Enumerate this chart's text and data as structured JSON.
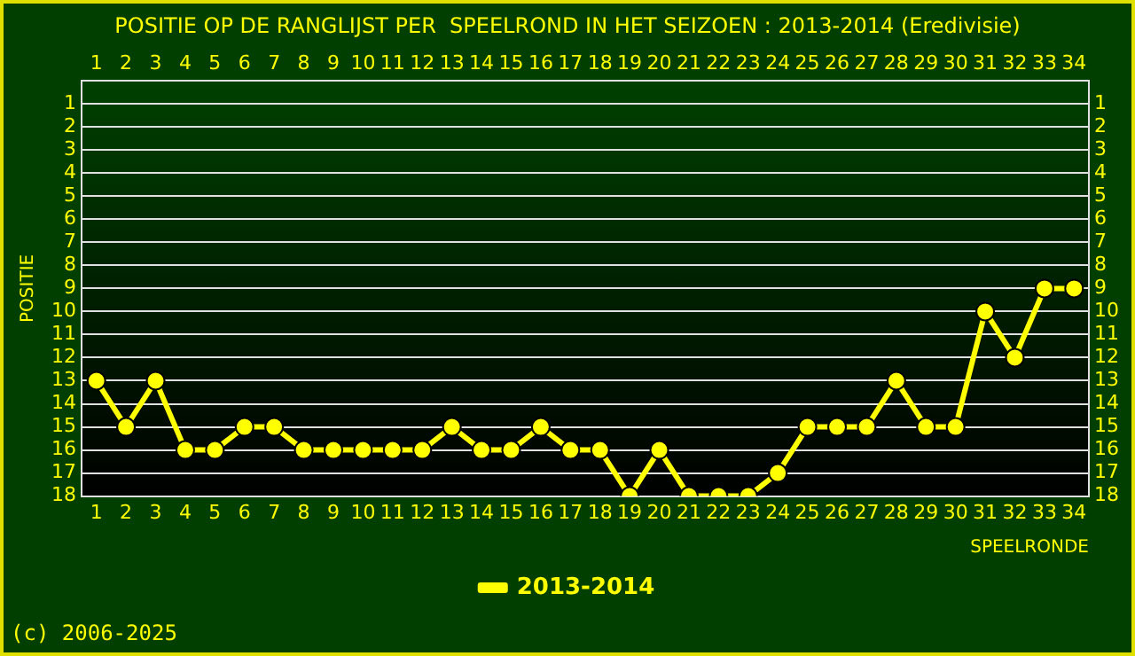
{
  "chart_data": {
    "type": "line",
    "title": "POSITIE OP DE RANGLIJST PER  SPEELROND IN HET SEIZOEN : 2013-2014 (Eredivisie)",
    "xlabel": "SPEELRONDE",
    "ylabel": "POSITIE",
    "x": [
      1,
      2,
      3,
      4,
      5,
      6,
      7,
      8,
      9,
      10,
      11,
      12,
      13,
      14,
      15,
      16,
      17,
      18,
      19,
      20,
      21,
      22,
      23,
      24,
      25,
      26,
      27,
      28,
      29,
      30,
      31,
      32,
      33,
      34
    ],
    "series": [
      {
        "name": "2013-2014",
        "color": "#ffff00",
        "values": [
          13,
          15,
          13,
          16,
          16,
          15,
          15,
          16,
          16,
          16,
          16,
          16,
          15,
          16,
          16,
          15,
          16,
          16,
          18,
          16,
          18,
          18,
          18,
          17,
          15,
          15,
          15,
          13,
          15,
          15,
          10,
          12,
          9,
          9
        ]
      }
    ],
    "xlim": [
      0.5,
      34.5
    ],
    "xticks": [
      1,
      2,
      3,
      4,
      5,
      6,
      7,
      8,
      9,
      10,
      11,
      12,
      13,
      14,
      15,
      16,
      17,
      18,
      19,
      20,
      21,
      22,
      23,
      24,
      25,
      26,
      27,
      28,
      29,
      30,
      31,
      32,
      33,
      34
    ],
    "x2lim": [
      0.5,
      34.5
    ],
    "x2ticks": [
      1,
      2,
      3,
      4,
      5,
      6,
      7,
      8,
      9,
      10,
      11,
      12,
      13,
      14,
      15,
      16,
      17,
      18,
      19,
      20,
      21,
      22,
      23,
      24,
      25,
      26,
      27,
      28,
      29,
      30,
      31,
      32,
      33,
      34
    ],
    "ylim": [
      18,
      0
    ],
    "yticks": [
      1,
      2,
      3,
      4,
      5,
      6,
      7,
      8,
      9,
      10,
      11,
      12,
      13,
      14,
      15,
      16,
      17,
      18
    ],
    "y2lim": [
      18,
      0
    ],
    "y2ticks": [
      1,
      2,
      3,
      4,
      5,
      6,
      7,
      8,
      9,
      10,
      11,
      12,
      13,
      14,
      15,
      16,
      17,
      18
    ],
    "grid": "y",
    "legend": "bottom",
    "marker": "circle",
    "line_style": "solid",
    "annotations": [
      "(c) 2006-2025"
    ]
  }
}
